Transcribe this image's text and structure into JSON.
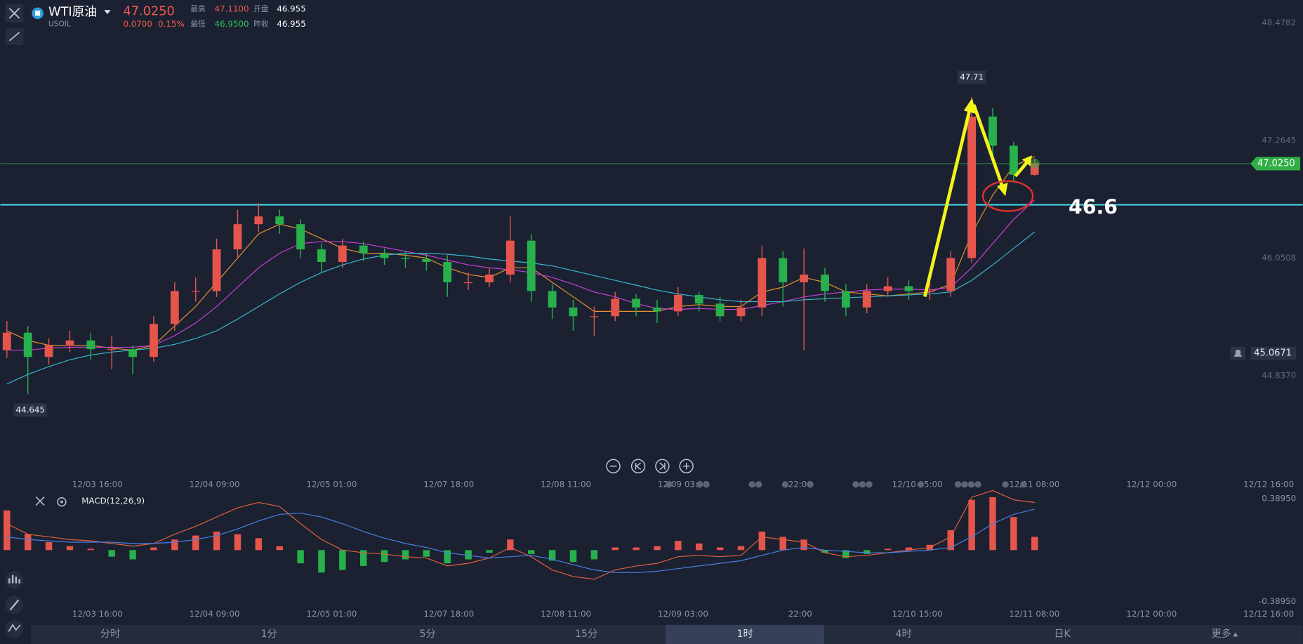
{
  "header": {
    "name": "WTI原油",
    "symbol": "USOIL",
    "price": {
      "value": 47.025,
      "label": "47.0250"
    },
    "change": {
      "value": 0.07,
      "label": "0.0700"
    },
    "change_pct": "0.15%",
    "high_label": "最高",
    "high": {
      "value": 47.11,
      "label": "47.1100"
    },
    "open_label": "开盘",
    "open": 46.955,
    "low_label": "最低",
    "low": {
      "value": 46.95,
      "label": "46.9500"
    },
    "prev_close_label": "昨收",
    "prev_close": 46.955
  },
  "tabs": [
    "分时",
    "1分",
    "5分",
    "15分",
    "1时",
    "4时",
    "日K",
    "更多"
  ],
  "active_tab": "1时",
  "chart_data": [
    {
      "type": "candlestick",
      "time_labels": [
        "12/03 16:00",
        "12/04 09:00",
        "12/05 01:00",
        "12/07 18:00",
        "12/08 11:00",
        "12/09 03:00",
        "22:00",
        "12/10 15:00",
        "12/11 08:00",
        "12/12 00:00",
        "12/12 16:00"
      ],
      "open": [
        45.1,
        45.28,
        45.03,
        45.15,
        45.2,
        45.11,
        45.11,
        45.03,
        45.37,
        45.71,
        45.71,
        46.14,
        46.4,
        46.48,
        46.4,
        46.14,
        46.01,
        46.18,
        46.1,
        46.05,
        46.04,
        46.01,
        45.8,
        45.8,
        45.88,
        46.23,
        45.71,
        45.54,
        45.45,
        45.45,
        45.63,
        45.54,
        45.5,
        45.67,
        45.58,
        45.45,
        45.54,
        46.05,
        45.8,
        45.88,
        45.71,
        45.54,
        45.71,
        45.76,
        45.71,
        45.71,
        46.05,
        47.51,
        47.21,
        46.91
      ],
      "high": [
        45.4,
        45.35,
        45.22,
        45.3,
        45.28,
        45.25,
        45.15,
        45.45,
        45.8,
        45.85,
        46.25,
        46.55,
        46.62,
        46.55,
        46.45,
        46.2,
        46.25,
        46.22,
        46.15,
        46.12,
        46.1,
        46.08,
        45.9,
        45.95,
        46.48,
        46.3,
        45.78,
        45.62,
        45.55,
        45.7,
        45.68,
        45.62,
        45.75,
        45.7,
        45.65,
        45.62,
        46.18,
        46.12,
        46.15,
        45.95,
        45.78,
        45.78,
        45.85,
        45.82,
        45.8,
        46.12,
        47.71,
        47.6,
        47.25,
        47.08
      ],
      "low": [
        45.02,
        44.645,
        44.95,
        45.08,
        45.0,
        44.9,
        44.85,
        44.98,
        45.3,
        45.6,
        45.65,
        46.05,
        46.32,
        46.3,
        46.05,
        45.9,
        45.95,
        46.02,
        45.98,
        45.95,
        45.92,
        45.65,
        45.72,
        45.75,
        45.8,
        45.6,
        45.42,
        45.3,
        45.25,
        45.4,
        45.45,
        45.38,
        45.45,
        45.5,
        45.4,
        45.4,
        45.45,
        45.55,
        45.1,
        45.6,
        45.45,
        45.48,
        45.65,
        45.62,
        45.62,
        45.65,
        46.0,
        47.1,
        46.85,
        46.9
      ],
      "close": [
        45.28,
        45.03,
        45.15,
        45.2,
        45.11,
        45.11,
        45.03,
        45.37,
        45.71,
        45.71,
        46.14,
        46.4,
        46.48,
        46.4,
        46.14,
        46.01,
        46.18,
        46.1,
        46.05,
        46.04,
        46.01,
        45.8,
        45.8,
        45.88,
        46.23,
        45.71,
        45.54,
        45.45,
        45.45,
        45.63,
        45.54,
        45.5,
        45.67,
        45.58,
        45.45,
        45.54,
        46.05,
        45.8,
        45.88,
        45.71,
        45.54,
        45.71,
        45.76,
        45.71,
        45.71,
        46.05,
        47.51,
        47.21,
        46.91,
        47.03
      ],
      "up_color": "#e5554c",
      "down_color": "#27b04b",
      "moving_averages": [
        {
          "color": "#e8902e",
          "values": [
            45.3,
            45.2,
            45.15,
            45.15,
            45.15,
            45.12,
            45.1,
            45.15,
            45.35,
            45.55,
            45.8,
            46.05,
            46.3,
            46.4,
            46.35,
            46.25,
            46.15,
            46.1,
            46.1,
            46.08,
            46.05,
            45.95,
            45.88,
            45.85,
            45.95,
            45.95,
            45.8,
            45.65,
            45.5,
            45.5,
            45.5,
            45.5,
            45.55,
            45.57,
            45.55,
            45.55,
            45.7,
            45.75,
            45.85,
            45.8,
            45.7,
            45.68,
            45.66,
            45.68,
            45.7,
            45.78,
            46.3,
            46.7,
            47.0,
            47.1
          ]
        },
        {
          "color": "#c93fd6",
          "values": [
            45.1,
            45.1,
            45.12,
            45.13,
            45.13,
            45.13,
            45.13,
            45.15,
            45.25,
            45.38,
            45.55,
            45.75,
            45.95,
            46.1,
            46.2,
            46.22,
            46.22,
            46.2,
            46.16,
            46.12,
            46.08,
            46.03,
            45.98,
            45.95,
            45.93,
            45.9,
            45.85,
            45.78,
            45.7,
            45.65,
            45.58,
            45.53,
            45.52,
            45.53,
            45.52,
            45.52,
            45.56,
            45.6,
            45.65,
            45.68,
            45.7,
            45.72,
            45.73,
            45.73,
            45.72,
            45.75,
            45.95,
            46.2,
            46.45,
            46.65
          ]
        },
        {
          "color": "#35b9d2",
          "values": [
            44.75,
            44.85,
            44.93,
            45.0,
            45.05,
            45.08,
            45.1,
            45.12,
            45.16,
            45.22,
            45.3,
            45.42,
            45.55,
            45.68,
            45.8,
            45.9,
            45.98,
            46.04,
            46.08,
            46.1,
            46.1,
            46.09,
            46.07,
            46.04,
            46.02,
            46.0,
            45.97,
            45.92,
            45.87,
            45.82,
            45.77,
            45.72,
            45.68,
            45.65,
            45.62,
            45.6,
            45.6,
            45.6,
            45.62,
            45.63,
            45.64,
            45.65,
            45.66,
            45.67,
            45.68,
            45.7,
            45.82,
            45.98,
            46.15,
            46.32
          ]
        }
      ],
      "ylim": [
        43.825,
        48.714
      ],
      "yticks": [
        {
          "value": 44.837,
          "label": "44.8370"
        },
        46.0508,
        47.2645,
        48.4782
      ],
      "high_marker": 47.71,
      "low_marker": 44.645,
      "last_price": {
        "value": 47.025,
        "label": "47.0250"
      },
      "last_price_color": "#2fae45",
      "alert_price": 45.0671,
      "annotation": 46.6,
      "annotation_color": "#3fd8ea"
    },
    {
      "type": "macd",
      "title": "MACD(12,26,9)",
      "histogram": [
        0.3,
        0.12,
        0.06,
        0.03,
        0.01,
        -0.05,
        -0.07,
        0.02,
        0.08,
        0.11,
        0.14,
        0.12,
        0.09,
        0.03,
        -0.1,
        -0.17,
        -0.15,
        -0.12,
        -0.09,
        -0.07,
        -0.05,
        -0.1,
        -0.07,
        -0.02,
        0.08,
        -0.03,
        -0.08,
        -0.09,
        -0.07,
        0.02,
        0.02,
        0.03,
        0.07,
        0.05,
        0.02,
        0.03,
        0.14,
        0.1,
        0.08,
        -0.02,
        -0.06,
        -0.03,
        0.01,
        0.02,
        0.04,
        0.15,
        0.38,
        0.4,
        0.25,
        0.1
      ],
      "up_color": "#e5554c",
      "down_color": "#27b04b",
      "series": [
        {
          "color": "#e0603e",
          "values": [
            0.2,
            0.12,
            0.1,
            0.08,
            0.07,
            0.05,
            0.03,
            0.05,
            0.12,
            0.18,
            0.25,
            0.32,
            0.36,
            0.33,
            0.2,
            0.08,
            0.0,
            -0.02,
            -0.03,
            -0.05,
            -0.06,
            -0.12,
            -0.1,
            -0.06,
            0.02,
            -0.05,
            -0.15,
            -0.2,
            -0.22,
            -0.15,
            -0.12,
            -0.1,
            -0.05,
            -0.04,
            -0.05,
            -0.04,
            0.1,
            0.08,
            0.06,
            -0.02,
            -0.05,
            -0.04,
            -0.02,
            0.0,
            0.02,
            0.1,
            0.4,
            0.45,
            0.38,
            0.36
          ]
        },
        {
          "color": "#4a7fe3",
          "values": [
            0.1,
            0.08,
            0.07,
            0.06,
            0.06,
            0.06,
            0.05,
            0.05,
            0.06,
            0.08,
            0.11,
            0.16,
            0.22,
            0.27,
            0.28,
            0.25,
            0.2,
            0.14,
            0.09,
            0.05,
            0.02,
            -0.02,
            -0.04,
            -0.06,
            -0.05,
            -0.04,
            -0.07,
            -0.11,
            -0.15,
            -0.17,
            -0.17,
            -0.16,
            -0.14,
            -0.12,
            -0.1,
            -0.08,
            -0.04,
            0.0,
            0.02,
            0.0,
            -0.01,
            -0.02,
            -0.02,
            -0.01,
            0.0,
            0.02,
            0.1,
            0.2,
            0.27,
            0.31
          ]
        }
      ],
      "ylim": [
        -0.5214,
        0.4523
      ],
      "yticks": [
        {
          "value": -0.3895,
          "label": "-0.38950"
        },
        {
          "value": 0.3895,
          "label": "0.38950"
        }
      ]
    }
  ]
}
